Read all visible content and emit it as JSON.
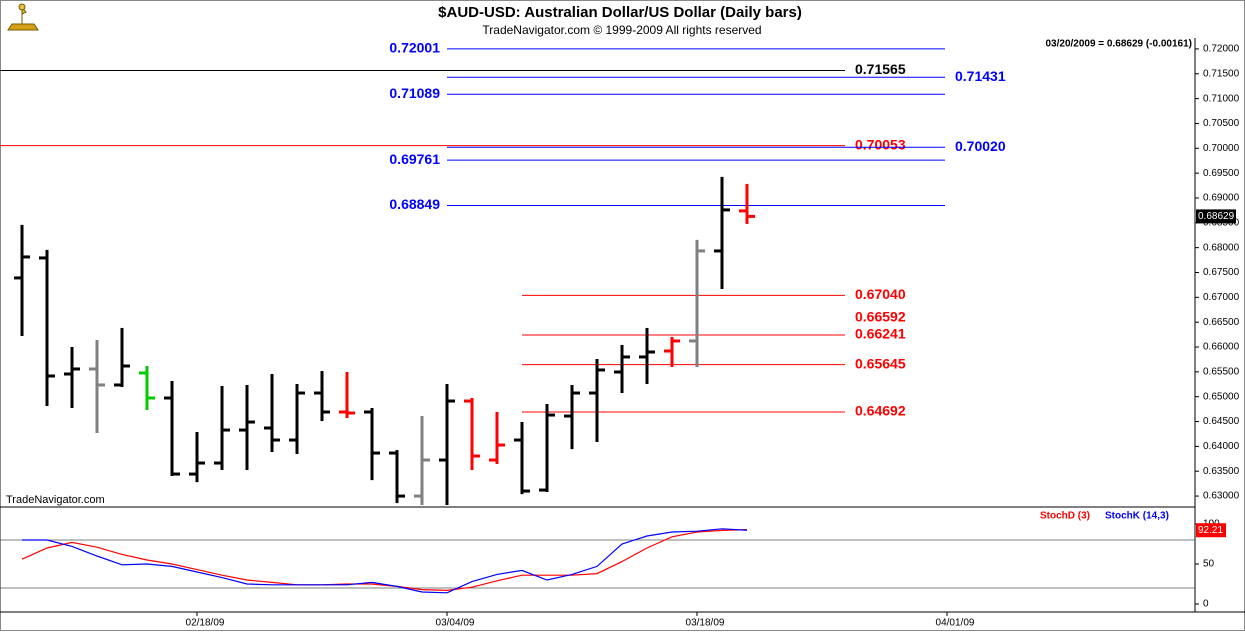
{
  "chart_data": [
    {
      "type": "ohlc",
      "title": "$AUD-USD:  Australian Dollar/US Dollar  (Daily bars)",
      "subtitle": "TradeNavigator.com © 1999-2009 All rights reserved",
      "annotation": "03/20/2009 = 0.68629 (-0.00161)",
      "watermark": "TradeNavigator.com",
      "x": [
        0,
        1,
        2,
        3,
        4,
        5,
        6,
        7,
        8,
        9,
        10,
        11,
        12,
        13,
        14,
        15,
        16,
        17,
        18,
        19,
        20,
        21,
        22,
        23,
        24,
        25,
        26,
        27,
        28,
        29
      ],
      "open": [
        0.67391,
        0.67793,
        0.65457,
        0.65558,
        0.65236,
        0.65477,
        0.64974,
        0.63443,
        0.63665,
        0.64329,
        0.6437,
        0.64128,
        0.65074,
        0.64692,
        0.64692,
        0.63866,
        0.63,
        0.63725,
        0.64913,
        0.63725,
        0.64128,
        0.63121,
        0.64611,
        0.65074,
        0.65497,
        0.658,
        0.6592,
        0.66122,
        0.67934,
        0.6874
      ],
      "high": [
        0.68458,
        0.67955,
        0.66001,
        0.66142,
        0.66384,
        0.65618,
        0.65316,
        0.64289,
        0.65215,
        0.65235,
        0.65457,
        0.65255,
        0.65517,
        0.65497,
        0.64772,
        0.63926,
        0.64611,
        0.65255,
        0.64974,
        0.64692,
        0.6449,
        0.64853,
        0.65235,
        0.65759,
        0.66041,
        0.66384,
        0.66202,
        0.68156,
        0.69424,
        0.69283
      ],
      "low": [
        0.66222,
        0.64813,
        0.64772,
        0.64269,
        0.65195,
        0.64732,
        0.63403,
        0.6328,
        0.63524,
        0.63524,
        0.63886,
        0.63846,
        0.6451,
        0.64571,
        0.63322,
        0.62859,
        0.62819,
        0.62819,
        0.63524,
        0.63645,
        0.6304,
        0.63081,
        0.63946,
        0.64088,
        0.65074,
        0.65255,
        0.65598,
        0.65598,
        0.67169,
        0.68477
      ],
      "close": [
        0.67813,
        0.65417,
        0.65558,
        0.65236,
        0.65618,
        0.64974,
        0.63443,
        0.63665,
        0.64329,
        0.6449,
        0.64128,
        0.65074,
        0.64692,
        0.64672,
        0.63866,
        0.63,
        0.63725,
        0.64913,
        0.63806,
        0.64027,
        0.63101,
        0.64631,
        0.65074,
        0.65538,
        0.658,
        0.659,
        0.66122,
        0.67934,
        0.6876,
        0.68629
      ],
      "bar_colors": [
        "#000000",
        "#000000",
        "#000000",
        "#808080",
        "#000000",
        "#00cc00",
        "#000000",
        "#000000",
        "#000000",
        "#000000",
        "#000000",
        "#000000",
        "#000000",
        "#ff0000",
        "#000000",
        "#000000",
        "#808080",
        "#000000",
        "#ff0000",
        "#ff0000",
        "#000000",
        "#000000",
        "#000000",
        "#000000",
        "#000000",
        "#000000",
        "#ff0000",
        "#808080",
        "#000000",
        "#ff0000"
      ],
      "levels": [
        {
          "value": 0.72001,
          "color": "#0000ff"
        },
        {
          "value": 0.71565,
          "color": "#000000"
        },
        {
          "value": 0.71431,
          "color": "#0000ff"
        },
        {
          "value": 0.71089,
          "color": "#0000ff"
        },
        {
          "value": 0.70053,
          "color": "#ff0000"
        },
        {
          "value": {
            "value": 0.7002,
            "label": "0.70020"
          },
          "color": "#0000ff"
        },
        {
          "value": 0.69761,
          "color": "#0000ff"
        },
        {
          "value": 0.68849,
          "color": "#0000ff"
        },
        {
          "value": {
            "value": 0.6704,
            "label": "0.67040"
          },
          "color": "#ff0000"
        },
        {
          "value": 0.66592,
          "color": "#ff0000"
        },
        {
          "value": 0.66241,
          "color": "#ff0000"
        },
        {
          "value": 0.65645,
          "color": "#ff0000"
        },
        {
          "value": 0.64692,
          "color": "#ff0000"
        }
      ],
      "xlim": [
        -0.88,
        46.92
      ],
      "ylim": [
        0.628,
        0.7222
      ],
      "yticks": [
        {
          "value": 0.63,
          "label": "0.63000"
        },
        {
          "value": 0.635,
          "label": "0.63500"
        },
        {
          "value": 0.64,
          "label": "0.64000"
        },
        {
          "value": 0.645,
          "label": "0.64500"
        },
        {
          "value": 0.65,
          "label": "0.65000"
        },
        {
          "value": 0.655,
          "label": "0.65500"
        },
        {
          "value": 0.66,
          "label": "0.66000"
        },
        {
          "value": 0.665,
          "label": "0.66500"
        },
        {
          "value": 0.67,
          "label": "0.67000"
        },
        {
          "value": 0.675,
          "label": "0.67500"
        },
        {
          "value": 0.68,
          "label": "0.68000"
        },
        {
          "value": 0.685,
          "label": "0.68500"
        },
        {
          "value": 0.69,
          "label": "0.69000"
        },
        {
          "value": 0.695,
          "label": "0.69500"
        },
        {
          "value": 0.7,
          "label": "0.70000"
        },
        {
          "value": 0.705,
          "label": "0.70500"
        },
        {
          "value": 0.71,
          "label": "0.71000"
        },
        {
          "value": 0.715,
          "label": "0.71500"
        },
        {
          "value": 0.72,
          "label": "0.72000"
        }
      ]
    },
    {
      "type": "line",
      "x": [
        0,
        1,
        2,
        3,
        4,
        5,
        6,
        7,
        8,
        9,
        10,
        11,
        12,
        13,
        14,
        15,
        16,
        17,
        18,
        19,
        20,
        21,
        22,
        23,
        24,
        25,
        26,
        27,
        28,
        29
      ],
      "series": [
        {
          "name": "StochD (3)",
          "color": "#ff0000",
          "values": [
            56,
            70,
            77,
            71,
            62,
            55,
            50,
            43,
            36,
            30,
            27,
            24,
            24,
            25,
            25,
            22,
            18,
            17,
            21,
            29,
            36,
            36,
            36,
            38,
            53,
            70,
            84,
            90,
            92,
            93
          ]
        },
        {
          "name": "StochK (14,3)",
          "color": "#0000ff",
          "values": [
            80,
            80,
            72,
            60,
            49,
            50,
            47,
            40,
            33,
            25,
            24,
            24,
            24,
            24,
            27,
            22,
            15,
            14,
            28,
            37,
            42,
            30,
            37,
            47,
            75,
            85,
            90,
            91,
            94,
            92.21
          ]
        }
      ],
      "guides": [
        20,
        80
      ],
      "xlim": [
        -0.88,
        46.92
      ],
      "ylim": [
        -10,
        117.5
      ],
      "yticks": [
        0,
        50,
        100
      ],
      "xticks": [
        {
          "value": 7,
          "label": "02/18/09"
        },
        {
          "value": 17,
          "label": "03/04/09"
        },
        {
          "value": 27,
          "label": "03/18/09"
        },
        {
          "value": 37,
          "label": "04/01/09"
        }
      ]
    }
  ]
}
